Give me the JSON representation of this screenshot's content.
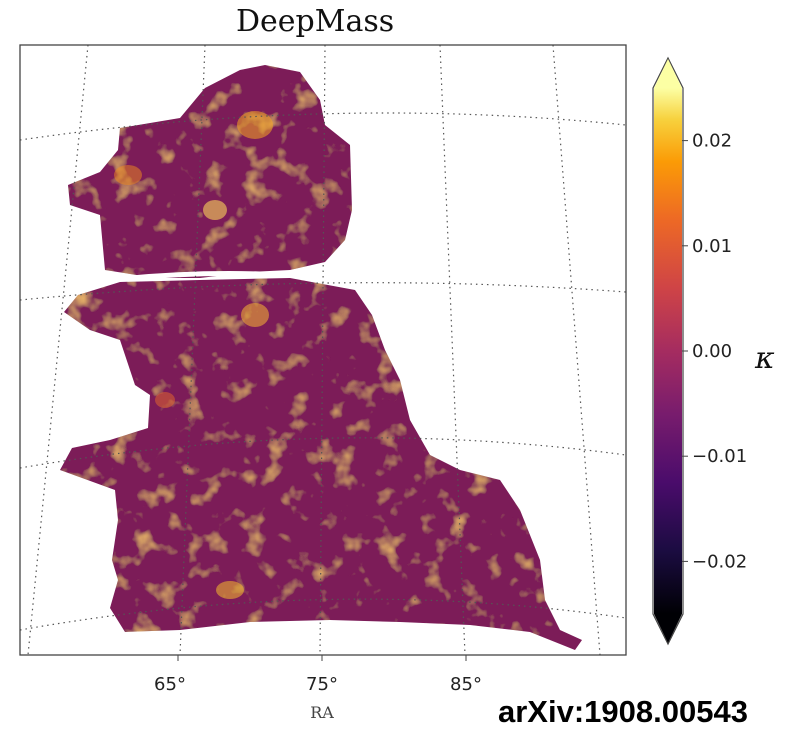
{
  "chart_data": {
    "type": "heatmap",
    "title": "DeepMass",
    "xlabel": "RA",
    "x_ticks": [
      "65°",
      "75°",
      "85°"
    ],
    "colorbar": {
      "label": "κ",
      "ticks": [
        "0.02",
        "0.01",
        "0.00",
        "−0.01",
        "−0.02"
      ],
      "tick_values": [
        0.02,
        0.01,
        0.0,
        -0.01,
        -0.02
      ],
      "range": [
        -0.025,
        0.025
      ],
      "colormap": "inferno",
      "extend": "both"
    },
    "grid": true,
    "grid_style": "dotted"
  },
  "annotation": {
    "text": "arXiv:1908.00543"
  },
  "colors": {
    "map_base": "#7b1a58",
    "frame": "#444444"
  }
}
